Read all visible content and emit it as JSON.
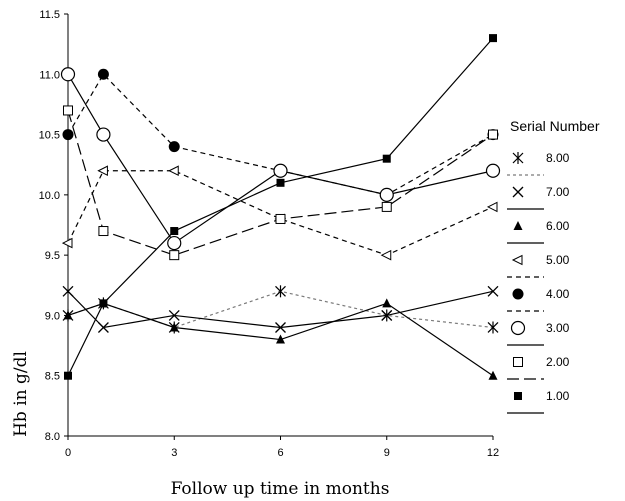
{
  "chart_data": {
    "type": "line",
    "title": "",
    "xlabel": "Follow up time in months",
    "ylabel": "Hb in g/dl",
    "x": [
      0,
      1,
      3,
      6,
      9,
      12
    ],
    "xticks": [
      "0",
      "3",
      "6",
      "9",
      "12"
    ],
    "xlim": [
      0,
      12
    ],
    "ylim": [
      8.0,
      11.5
    ],
    "yticks": [
      "8.0",
      "8.5",
      "9.0",
      "9.5",
      "10.0",
      "10.5",
      "11.0",
      "11.5"
    ],
    "grid": false,
    "legend_title": "Serial Number",
    "legend_position": "right",
    "series": [
      {
        "name": "8.00",
        "marker": "asterisk",
        "dash": "dashed-fine",
        "color": "#7a7a7a",
        "values": [
          9.0,
          9.1,
          8.9,
          9.2,
          9.0,
          8.9
        ]
      },
      {
        "name": "7.00",
        "marker": "x",
        "dash": "solid",
        "color": "#000000",
        "values": [
          9.2,
          8.9,
          9.0,
          8.9,
          9.0,
          9.2
        ]
      },
      {
        "name": "6.00",
        "marker": "triangle",
        "dash": "solid",
        "color": "#000000",
        "values": [
          9.0,
          9.1,
          8.9,
          8.8,
          9.1,
          8.5
        ]
      },
      {
        "name": "5.00",
        "marker": "triangle-left-open",
        "dash": "dashed",
        "color": "#000000",
        "values": [
          9.6,
          10.2,
          10.2,
          9.8,
          9.5,
          9.9
        ]
      },
      {
        "name": "4.00",
        "marker": "circle-filled",
        "dash": "dashed",
        "color": "#000000",
        "values": [
          10.5,
          11.0,
          10.4,
          10.2,
          10.0,
          10.5
        ]
      },
      {
        "name": "3.00",
        "marker": "circle-open",
        "dash": "solid",
        "color": "#000000",
        "values": [
          11.0,
          10.5,
          9.6,
          10.2,
          10.0,
          10.2
        ]
      },
      {
        "name": "2.00",
        "marker": "square-open",
        "dash": "long-dash",
        "color": "#000000",
        "values": [
          10.7,
          9.7,
          9.5,
          9.8,
          9.9,
          10.5
        ]
      },
      {
        "name": "1.00",
        "marker": "square-filled",
        "dash": "solid",
        "color": "#000000",
        "values": [
          8.5,
          9.1,
          9.7,
          10.1,
          10.3,
          11.3
        ]
      }
    ]
  }
}
